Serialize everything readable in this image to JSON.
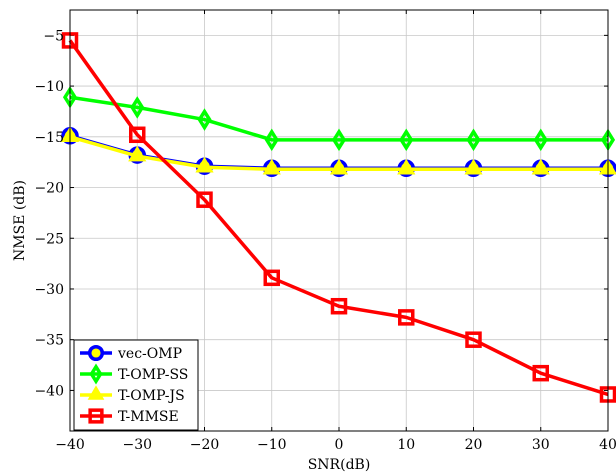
{
  "chart_data": {
    "type": "line",
    "xlabel": "SNR(dB)",
    "ylabel": "NMSE (dB)",
    "xlim": [
      -40,
      40
    ],
    "ylim": [
      -44,
      -2.5
    ],
    "x_ticks": [
      -40,
      -30,
      -20,
      -10,
      0,
      10,
      20,
      30,
      40
    ],
    "y_ticks": [
      -5,
      -10,
      -15,
      -20,
      -25,
      -30,
      -35,
      -40
    ],
    "x_tick_labels": [
      "−40",
      "−30",
      "−20",
      "−10",
      "0",
      "10",
      "20",
      "30",
      "40"
    ],
    "y_tick_labels": [
      "−5",
      "−10",
      "−15",
      "−20",
      "−25",
      "−30",
      "−35",
      "−40"
    ],
    "grid": true,
    "legend_position": "bottom-left",
    "x": [
      -40,
      -30,
      -20,
      -10,
      0,
      10,
      20,
      30,
      40
    ],
    "series": [
      {
        "name": "vec-OMP",
        "color": "#0000ff",
        "marker": "circle",
        "values": [
          -14.9,
          -16.8,
          -17.9,
          -18.1,
          -18.1,
          -18.1,
          -18.1,
          -18.1,
          -18.1
        ]
      },
      {
        "name": "T-OMP-SS",
        "color": "#00ff00",
        "marker": "diamond",
        "values": [
          -11.1,
          -12.1,
          -13.3,
          -15.3,
          -15.3,
          -15.3,
          -15.3,
          -15.3,
          -15.3
        ]
      },
      {
        "name": "T-OMP-JS",
        "color": "#ffff00",
        "marker": "triangle",
        "values": [
          -15.0,
          -16.9,
          -18.0,
          -18.2,
          -18.2,
          -18.2,
          -18.2,
          -18.2,
          -18.2
        ]
      },
      {
        "name": "T-MMSE",
        "color": "#ff0000",
        "marker": "square",
        "values": [
          -5.5,
          -14.8,
          -21.2,
          -28.9,
          -31.7,
          -32.8,
          -35.0,
          -38.3,
          -40.4
        ]
      }
    ]
  }
}
